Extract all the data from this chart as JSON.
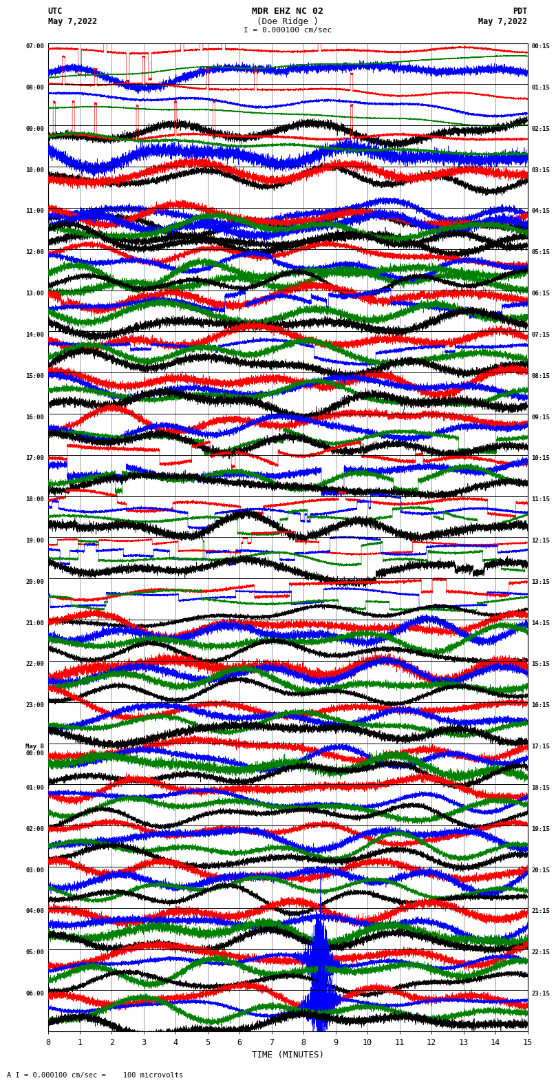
{
  "title_line1": "MDR EHZ NC 02",
  "title_line2": "(Doe Ridge )",
  "scale_label": "I = 0.000100 cm/sec",
  "utc_label": "UTC",
  "utc_date": "May 7,2022",
  "pdt_label": "PDT",
  "pdt_date": "May 7,2022",
  "xlabel": "TIME (MINUTES)",
  "footer": "A I = 0.000100 cm/sec =    100 microvolts",
  "left_times": [
    "07:00",
    "08:00",
    "09:00",
    "10:00",
    "11:00",
    "12:00",
    "13:00",
    "14:00",
    "15:00",
    "16:00",
    "17:00",
    "18:00",
    "19:00",
    "20:00",
    "21:00",
    "22:00",
    "23:00",
    "May 8\n00:00",
    "01:00",
    "02:00",
    "03:00",
    "04:00",
    "05:00",
    "06:00"
  ],
  "right_times": [
    "00:15",
    "01:15",
    "02:15",
    "03:15",
    "04:15",
    "05:15",
    "06:15",
    "07:15",
    "08:15",
    "09:15",
    "10:15",
    "11:15",
    "12:15",
    "13:15",
    "14:15",
    "15:15",
    "16:15",
    "17:15",
    "18:15",
    "19:15",
    "20:15",
    "21:15",
    "22:15",
    "23:15"
  ],
  "num_rows": 24,
  "x_max": 15.0,
  "bg_color": "#ffffff",
  "grid_color": "#888888",
  "figsize": [
    8.5,
    16.13
  ]
}
